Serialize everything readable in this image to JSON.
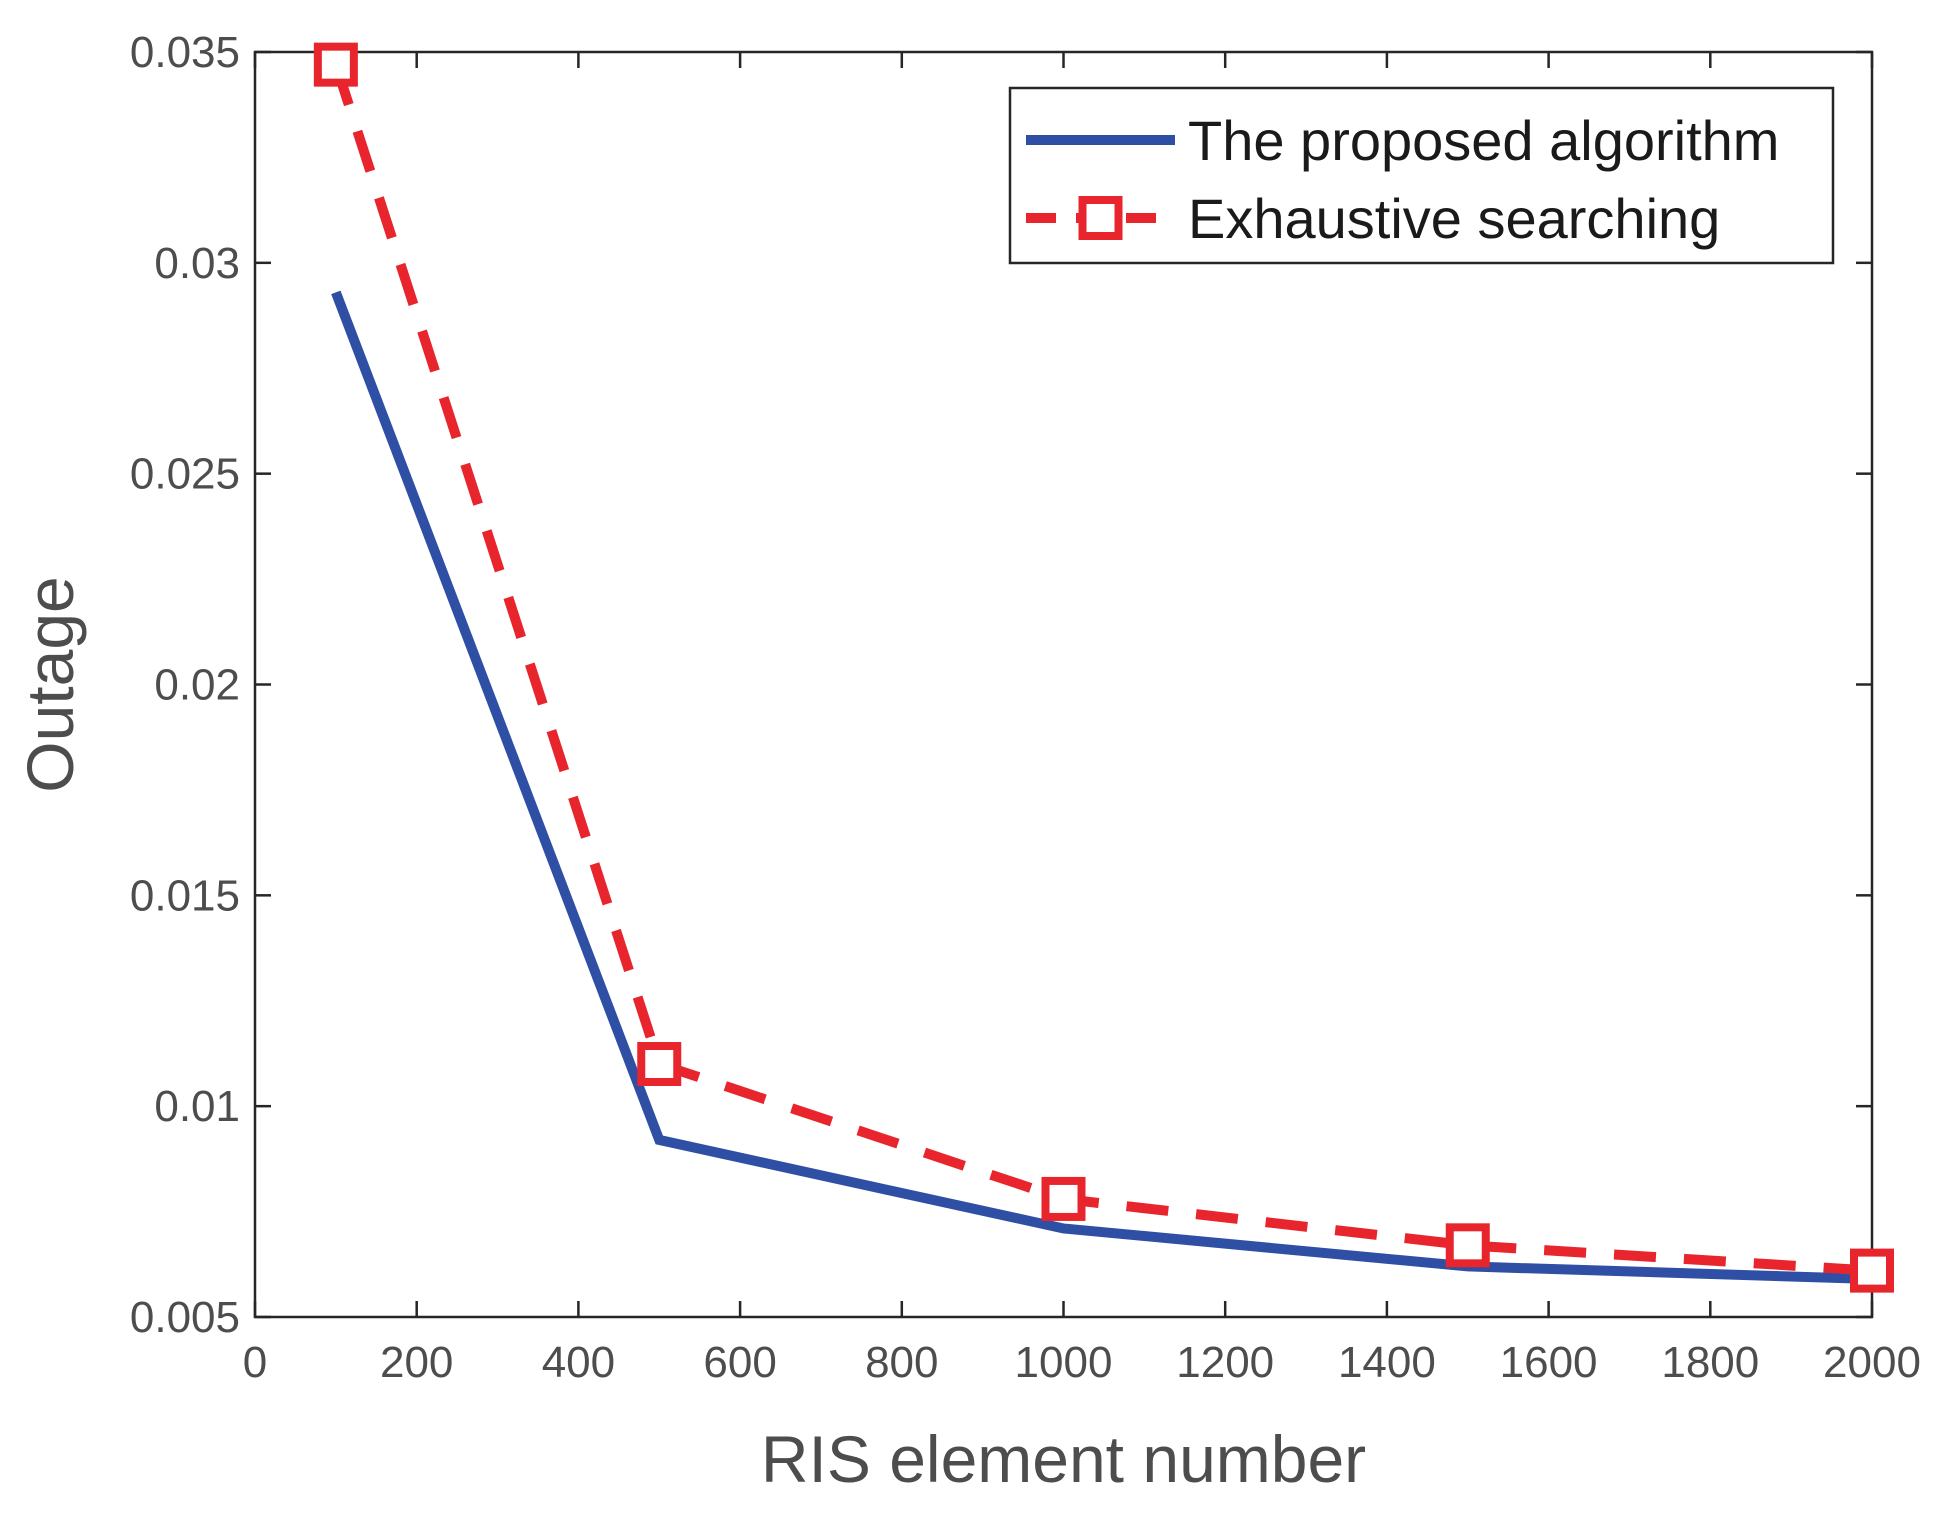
{
  "chart_data": {
    "type": "line",
    "title": "",
    "xlabel": "RIS element number",
    "ylabel": "Outage",
    "xlim": [
      0,
      2000
    ],
    "ylim": [
      0.005,
      0.035
    ],
    "xticks": [
      0,
      200,
      400,
      600,
      800,
      1000,
      1200,
      1400,
      1600,
      1800,
      2000
    ],
    "xtick_labels": [
      "0",
      "200",
      "400",
      "600",
      "800",
      "1000",
      "1200",
      "1400",
      "1600",
      "1800",
      "2000"
    ],
    "yticks": [
      0.005,
      0.01,
      0.015,
      0.02,
      0.025,
      0.03,
      0.035
    ],
    "ytick_labels": [
      "0.005",
      "0.01",
      "0.015",
      "0.02",
      "0.025",
      "0.03",
      "0.035"
    ],
    "grid": false,
    "legend_position": "top-right",
    "series": [
      {
        "name": "The proposed algorithm",
        "color": "#2e4fa3",
        "line_style": "solid",
        "marker": "none",
        "x": [
          100,
          500,
          1000,
          1500,
          2000
        ],
        "y": [
          0.0293,
          0.0092,
          0.0071,
          0.0062,
          0.0059
        ]
      },
      {
        "name": "Exhaustive searching",
        "color": "#e8242c",
        "line_style": "dashed",
        "marker": "square",
        "x": [
          100,
          500,
          1000,
          1500,
          2000
        ],
        "y": [
          0.0347,
          0.011,
          0.0078,
          0.0067,
          0.0061
        ]
      }
    ]
  }
}
